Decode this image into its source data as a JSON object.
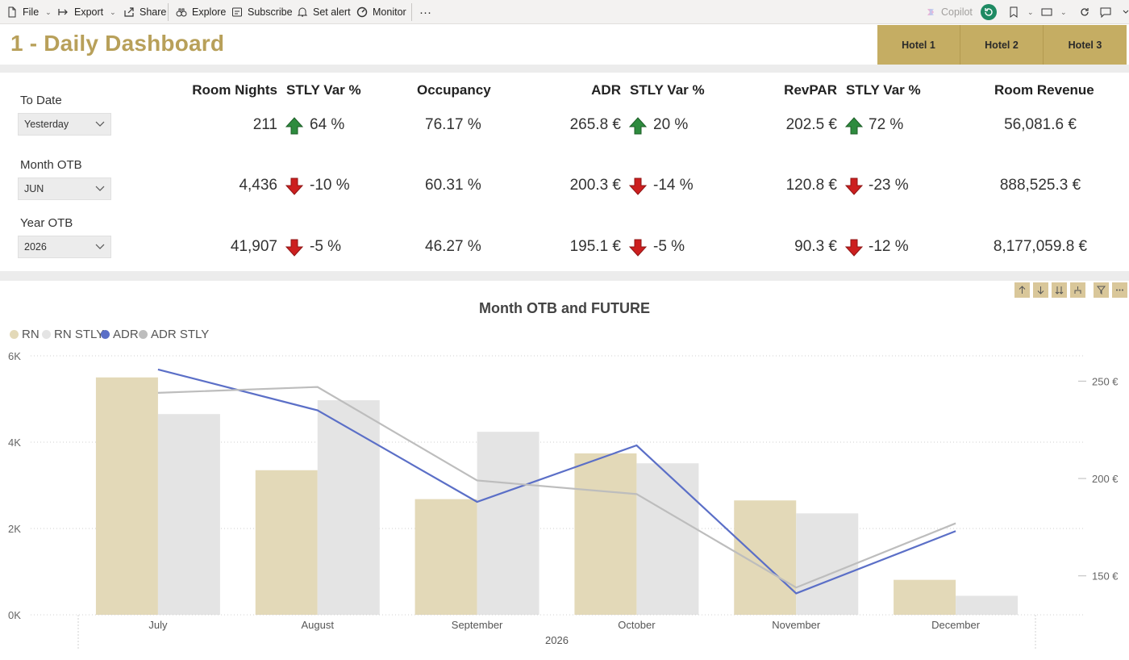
{
  "toolbar": {
    "file": "File",
    "export": "Export",
    "share": "Share",
    "explore": "Explore",
    "subscribe": "Subscribe",
    "set_alert": "Set alert",
    "monitor": "Monitor",
    "more": "···",
    "copilot": "Copilot"
  },
  "page_title": "1 - Daily Dashboard",
  "hotels": [
    "Hotel 1",
    "Hotel 2",
    "Hotel 3"
  ],
  "slicers": {
    "to_date_label": "To Date",
    "to_date_value": "Yesterday",
    "month_label": "Month OTB",
    "month_value": "JUN",
    "year_label": "Year OTB",
    "year_value": "2026"
  },
  "kpi_headers": {
    "room_nights": "Room Nights",
    "stly1": "STLY Var %",
    "occupancy": "Occupancy",
    "adr": "ADR",
    "stly2": "STLY Var %",
    "revpar": "RevPAR",
    "stly3": "STLY Var %",
    "room_revenue": "Room Revenue"
  },
  "kpi_rows": [
    {
      "room_nights": "211",
      "rn_var": "64 %",
      "rn_dir": "up",
      "occupancy": "76.17 %",
      "adr": "265.8 €",
      "adr_var": "20 %",
      "adr_dir": "up",
      "revpar": "202.5 €",
      "revpar_var": "72 %",
      "revpar_dir": "up",
      "room_revenue": "56,081.6 €"
    },
    {
      "room_nights": "4,436",
      "rn_var": "-10 %",
      "rn_dir": "down",
      "occupancy": "60.31 %",
      "adr": "200.3 €",
      "adr_var": "-14 %",
      "adr_dir": "down",
      "revpar": "120.8 €",
      "revpar_var": "-23 %",
      "revpar_dir": "down",
      "room_revenue": "888,525.3 €"
    },
    {
      "room_nights": "41,907",
      "rn_var": "-5 %",
      "rn_dir": "down",
      "occupancy": "46.27 %",
      "adr": "195.1 €",
      "adr_var": "-5 %",
      "adr_dir": "down",
      "revpar": "90.3 €",
      "revpar_var": "-12 %",
      "revpar_dir": "down",
      "room_revenue": "8,177,059.8 €"
    }
  ],
  "colors": {
    "gold": "#c5ad63",
    "title_gold": "#b8a05a",
    "rn": "#e3d9b8",
    "rn_stly": "#e4e4e4",
    "adr": "#5b6fc7",
    "adr_stly": "#bdbdbd",
    "up": "#2e8b3e",
    "down": "#cc1f1f"
  },
  "chart_data": {
    "type": "bar",
    "title": "Month OTB and FUTURE",
    "categories": [
      "July",
      "August",
      "September",
      "October",
      "November",
      "December"
    ],
    "x_group_label": "2026",
    "series": [
      {
        "name": "RN",
        "kind": "bar",
        "axis": "left",
        "values": [
          5500,
          3350,
          2680,
          3740,
          2650,
          810
        ]
      },
      {
        "name": "RN STLY",
        "kind": "bar",
        "axis": "left",
        "values": [
          4650,
          4970,
          4240,
          3510,
          2350,
          440
        ]
      },
      {
        "name": "ADR",
        "kind": "line",
        "axis": "right",
        "values": [
          256,
          235,
          188,
          217,
          141,
          173
        ]
      },
      {
        "name": "ADR STLY",
        "kind": "line",
        "axis": "right",
        "values": [
          244,
          247,
          199,
          192,
          144,
          177
        ]
      }
    ],
    "y_left": {
      "ticks": [
        "0K",
        "2K",
        "4K",
        "6K"
      ],
      "ylim": [
        0,
        6000
      ]
    },
    "y_right": {
      "ticks": [
        "150 €",
        "200 €",
        "250 €"
      ],
      "values": [
        150,
        200,
        250
      ],
      "ylim": [
        130,
        263
      ]
    },
    "legend_position": "top-left",
    "grid": true
  }
}
